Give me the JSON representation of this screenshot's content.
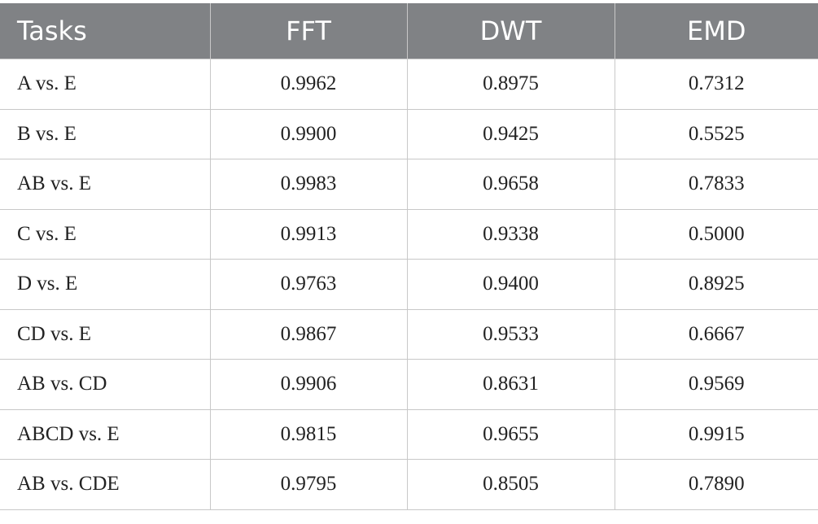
{
  "table": {
    "header": [
      "Tasks",
      "FFT",
      "DWT",
      "EMD"
    ],
    "rows": [
      [
        "A vs. E",
        "0.9962",
        "0.8975",
        "0.7312"
      ],
      [
        "B vs. E",
        "0.9900",
        "0.9425",
        "0.5525"
      ],
      [
        "AB vs. E",
        "0.9983",
        "0.9658",
        "0.7833"
      ],
      [
        "C vs. E",
        "0.9913",
        "0.9338",
        "0.5000"
      ],
      [
        "D vs. E",
        "0.9763",
        "0.9400",
        "0.8925"
      ],
      [
        "CD vs. E",
        "0.9867",
        "0.9533",
        "0.6667"
      ],
      [
        "AB vs. CD",
        "0.9906",
        "0.8631",
        "0.9569"
      ],
      [
        "ABCD vs. E",
        "0.9815",
        "0.9655",
        "0.9915"
      ],
      [
        "AB vs. CDE",
        "0.9795",
        "0.8505",
        "0.7890"
      ]
    ]
  }
}
